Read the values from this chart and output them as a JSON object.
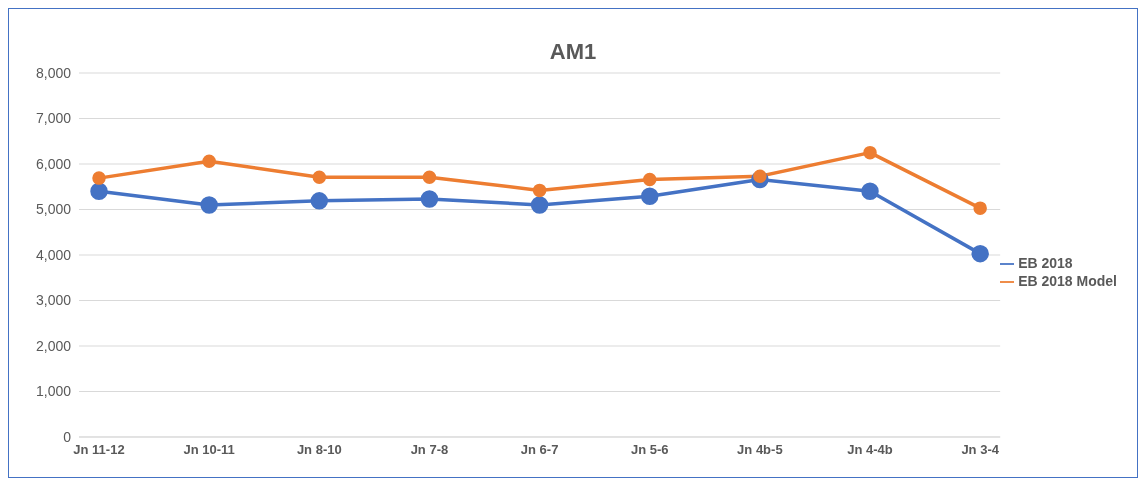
{
  "chart_data": {
    "type": "line",
    "title": "AM1",
    "categories": [
      "Jn 11-12",
      "Jn 10-11",
      "Jn 8-10",
      "Jn 7-8",
      "Jn 6-7",
      "Jn 5-6",
      "Jn 4b-5",
      "Jn 4-4b",
      "Jn 3-4"
    ],
    "series": [
      {
        "name": "EB 2018",
        "color": "#4472c4",
        "values": [
          5400,
          5100,
          5190,
          5230,
          5100,
          5290,
          5660,
          5400,
          4030
        ]
      },
      {
        "name": "EB 2018 Model",
        "color": "#ed7d31",
        "values": [
          5690,
          6060,
          5710,
          5710,
          5420,
          5660,
          5730,
          6250,
          5030
        ]
      }
    ],
    "ylim": [
      0,
      8000
    ],
    "yticks": [
      0,
      {
        "value": 1000,
        "label": "1,000"
      },
      {
        "value": 2000,
        "label": "2,000"
      },
      {
        "value": 3000,
        "label": "3,000"
      },
      {
        "value": 4000,
        "label": "4,000"
      },
      {
        "value": 5000,
        "label": "5,000"
      },
      {
        "value": 6000,
        "label": "6,000"
      },
      {
        "value": 7000,
        "label": "7,000"
      },
      {
        "value": 8000,
        "label": "8,000"
      }
    ],
    "grid": "y",
    "legend": "right",
    "marker": "circle",
    "line_style": "solid"
  }
}
